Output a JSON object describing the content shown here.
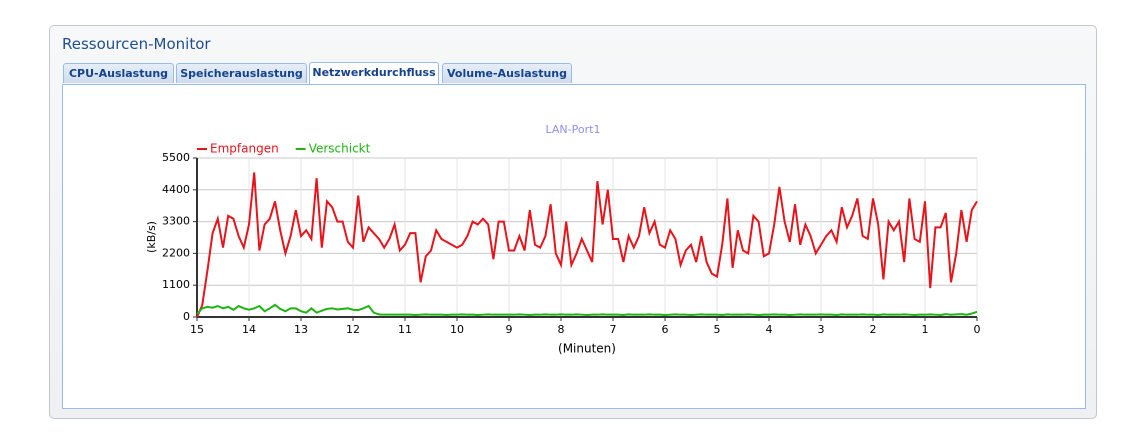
{
  "window": {
    "title": "Ressourcen-Monitor",
    "tabs": [
      "CPU-Auslastung",
      "Speicherauslastung",
      "Netzwerkdurchfluss",
      "Volume-Auslastung"
    ],
    "active_tab": 2
  },
  "chart_data": {
    "type": "line",
    "title": "LAN-Port1",
    "y_label": "(kB/s)",
    "x_label": "(Minuten)",
    "xlim": [
      15,
      0
    ],
    "xticks": [
      15,
      14,
      13,
      12,
      11,
      10,
      9,
      8,
      7,
      6,
      5,
      4,
      3,
      2,
      1,
      0
    ],
    "ylim": [
      0,
      5500
    ],
    "yticks": [
      0,
      1100,
      2200,
      3300,
      4400,
      5500
    ],
    "grid": true,
    "legend": "top-left",
    "x": [
      15,
      14.9,
      14.8,
      14.7,
      14.6,
      14.5,
      14.4,
      14.3,
      14.2,
      14.1,
      14,
      13.9,
      13.8,
      13.7,
      13.6,
      13.5,
      13.4,
      13.3,
      13.2,
      13.1,
      13,
      12.9,
      12.8,
      12.7,
      12.6,
      12.5,
      12.4,
      12.3,
      12.2,
      12.1,
      12,
      11.9,
      11.8,
      11.7,
      11.6,
      11.5,
      11.4,
      11.3,
      11.2,
      11.1,
      11,
      10.9,
      10.8,
      10.7,
      10.6,
      10.5,
      10.4,
      10.3,
      10.2,
      10.1,
      10,
      9.9,
      9.8,
      9.7,
      9.6,
      9.5,
      9.4,
      9.3,
      9.2,
      9.1,
      9,
      8.9,
      8.8,
      8.7,
      8.6,
      8.5,
      8.4,
      8.3,
      8.2,
      8.1,
      8,
      7.9,
      7.8,
      7.7,
      7.6,
      7.5,
      7.4,
      7.3,
      7.2,
      7.1,
      7,
      6.9,
      6.8,
      6.7,
      6.6,
      6.5,
      6.4,
      6.3,
      6.2,
      6.1,
      6,
      5.9,
      5.8,
      5.7,
      5.6,
      5.5,
      5.4,
      5.3,
      5.2,
      5.1,
      5,
      4.9,
      4.8,
      4.7,
      4.6,
      4.5,
      4.4,
      4.3,
      4.2,
      4.1,
      4,
      3.9,
      3.8,
      3.7,
      3.6,
      3.5,
      3.4,
      3.3,
      3.2,
      3.1,
      3,
      2.9,
      2.8,
      2.7,
      2.6,
      2.5,
      2.4,
      2.3,
      2.2,
      2.1,
      2,
      1.9,
      1.8,
      1.7,
      1.6,
      1.5,
      1.4,
      1.3,
      1.2,
      1.1,
      1,
      0.9,
      0.8,
      0.7,
      0.6,
      0.5,
      0.4,
      0.3,
      0.2,
      0.1,
      0
    ],
    "series": [
      {
        "name": "Empfangen",
        "color": "#e8141c",
        "values": [
          0,
          400,
          1600,
          2900,
          3400,
          2400,
          3500,
          3400,
          2800,
          2400,
          3200,
          5000,
          2300,
          3200,
          3400,
          4000,
          3000,
          2200,
          2800,
          3700,
          2800,
          3000,
          2700,
          4800,
          2400,
          4000,
          3800,
          3300,
          3300,
          2600,
          2400,
          4200,
          2600,
          3100,
          2900,
          2700,
          2400,
          2700,
          3200,
          2300,
          2500,
          2900,
          2900,
          1200,
          2100,
          2300,
          3000,
          2700,
          2600,
          2500,
          2400,
          2500,
          2800,
          3300,
          3200,
          3400,
          3200,
          2000,
          3300,
          3300,
          2300,
          2300,
          2800,
          2300,
          3700,
          2500,
          2400,
          2800,
          3900,
          2200,
          1800,
          3300,
          1800,
          2200,
          2700,
          2300,
          1900,
          4700,
          3200,
          4400,
          2700,
          2700,
          1900,
          2800,
          2400,
          2800,
          3800,
          2900,
          3300,
          2500,
          2400,
          3000,
          2700,
          1800,
          2300,
          2500,
          1900,
          2800,
          1900,
          1500,
          1400,
          2500,
          4100,
          1700,
          3000,
          2300,
          2200,
          3500,
          3300,
          2100,
          2200,
          3200,
          4500,
          3300,
          2600,
          3900,
          2500,
          3200,
          2800,
          2200,
          2500,
          2800,
          3000,
          2600,
          3800,
          3100,
          3500,
          4100,
          2800,
          2700,
          4100,
          3200,
          1300,
          3300,
          3000,
          3300,
          1900,
          4100,
          2700,
          2600,
          4000,
          1000,
          3100,
          3100,
          3600,
          1200,
          2200,
          3700,
          2600,
          3700,
          4000
        ]
      },
      {
        "name": "Verschickt",
        "color": "#1fb414",
        "values": [
          100,
          300,
          350,
          320,
          380,
          300,
          350,
          250,
          380,
          300,
          250,
          300,
          380,
          200,
          300,
          420,
          280,
          200,
          300,
          300,
          200,
          150,
          300,
          150,
          220,
          280,
          300,
          260,
          280,
          300,
          250,
          240,
          300,
          380,
          150,
          90,
          80,
          80,
          80,
          80,
          80,
          80,
          70,
          80,
          90,
          80,
          80,
          80,
          70,
          80,
          80,
          90,
          80,
          80,
          70,
          80,
          90,
          80,
          80,
          80,
          80,
          80,
          90,
          80,
          70,
          80,
          80,
          90,
          80,
          80,
          90,
          80,
          80,
          90,
          80,
          70,
          80,
          80,
          90,
          80,
          80,
          80,
          70,
          90,
          80,
          80,
          80,
          90,
          80,
          80,
          70,
          80,
          90,
          80,
          80,
          70,
          80,
          90,
          80,
          80,
          80,
          70,
          90,
          80,
          80,
          80,
          90,
          80,
          70,
          80,
          80,
          90,
          80,
          80,
          70,
          80,
          90,
          80,
          80,
          80,
          90,
          80,
          80,
          70,
          90,
          80,
          80,
          80,
          90,
          80,
          80,
          70,
          90,
          80,
          80,
          80,
          90,
          80,
          70,
          80,
          80,
          90,
          80,
          70,
          100,
          80,
          90,
          100,
          80,
          120,
          180
        ]
      }
    ]
  }
}
